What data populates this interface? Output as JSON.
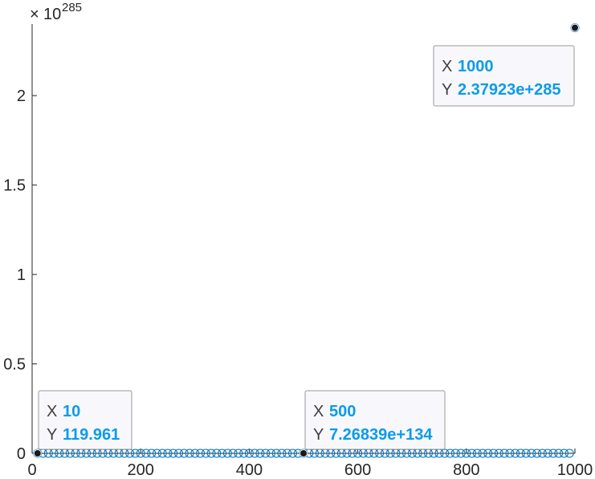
{
  "chart_data": {
    "type": "scatter",
    "title": "",
    "xlabel": "",
    "ylabel": "",
    "xlim": [
      0,
      1000
    ],
    "ylim": [
      0,
      2.4
    ],
    "y_exponent_label": {
      "base": "10",
      "exponent": "285"
    },
    "x_ticks": [
      0,
      200,
      400,
      600,
      800,
      1000
    ],
    "x_tick_labels": [
      "0",
      "200",
      "400",
      "600",
      "800",
      "1000"
    ],
    "y_ticks": [
      0,
      0.5,
      1,
      1.5,
      2
    ],
    "y_tick_labels": [
      "0",
      "0.5",
      "1",
      "1.5",
      "2"
    ],
    "grid": false,
    "legend": "none",
    "marker": "open-circle",
    "marker_color": "#0072bd",
    "series": [
      {
        "x_start": 10,
        "x_end": 1000,
        "x_step": 10,
        "y_note": "all points at 0 on the x10^285 scale except the last"
      }
    ],
    "datatips": [
      {
        "x": 10,
        "y": 119.961,
        "x_label": "X",
        "y_label": "Y",
        "x_text": "10",
        "y_text": "119.961"
      },
      {
        "x": 500,
        "y": 7.26839e+134,
        "x_label": "X",
        "y_label": "Y",
        "x_text": "500",
        "y_text": "7.26839e+134"
      },
      {
        "x": 1000,
        "y": 2.37923e+285,
        "x_label": "X",
        "y_label": "Y",
        "x_text": "1000",
        "y_text": "2.37923e+285"
      }
    ],
    "tip_value_color": "#0b9bea"
  }
}
